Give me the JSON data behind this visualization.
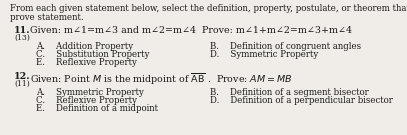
{
  "bg_color": "#f0ede8",
  "text_color": "#1a1a1a",
  "header_line1": "From each given statement below, select the definition, property, postulate, or theorem that justifies each",
  "header_line2": "prove statement.",
  "q11_num": "11.",
  "q11_sub": "(13)",
  "q11_given": "Given: m∠1=m∠3 and m∠2=m∠4  Prove: m∠1+m∠2=m∠3+m∠4",
  "q11_A": "A.    Addition Property",
  "q11_B": "B.    Definition of congruent angles",
  "q11_C": "C.    Substitution Property",
  "q11_D": "D.    Symmetric Property",
  "q11_E": "E.    Reflexive Property",
  "q12_num": "12.",
  "q12_sub": "(11)",
  "q12_given": "Given: Point M is the midpoint of AB .  Prove: AM = MB",
  "q12_A": "A.    Symmetric Property",
  "q12_B": "B.    Definition of a segment bisector",
  "q12_C": "C.    Reflexive Property",
  "q12_D": "D.    Definition of a perpendicular bisector",
  "q12_E": "E.    Definition of a midpoint",
  "fs_header": 6.2,
  "fs_q": 6.8,
  "fs_opt": 6.2,
  "fs_sub": 5.5
}
